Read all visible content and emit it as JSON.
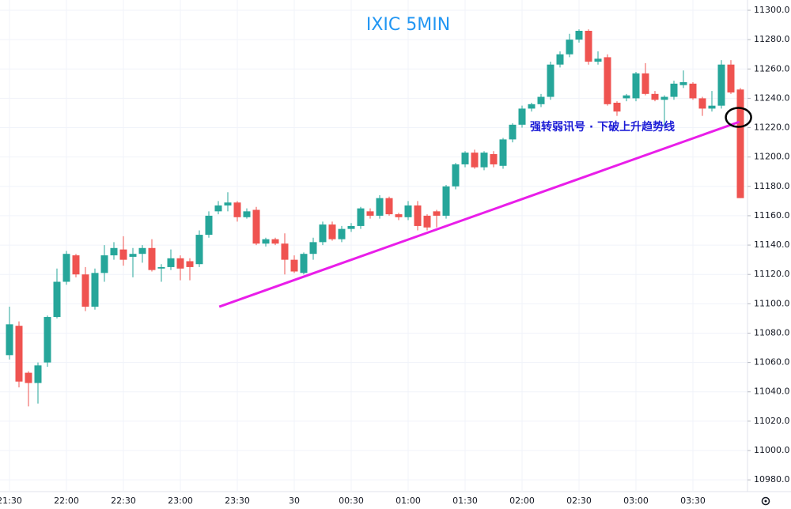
{
  "chart_data": {
    "type": "candlestick",
    "title": "IXIC 5MIN",
    "annotation": "强转弱讯号 · 下破上升趋势线",
    "up_color": "#26a69a",
    "down_color": "#ef5350",
    "grid": true,
    "categories": [
      "21:30",
      null,
      null,
      null,
      null,
      null,
      "22:00",
      null,
      null,
      null,
      null,
      null,
      "22:30",
      null,
      null,
      null,
      null,
      null,
      "23:00",
      null,
      null,
      null,
      null,
      null,
      "23:30",
      null,
      null,
      null,
      null,
      null,
      "30",
      null,
      null,
      null,
      null,
      null,
      "00:30",
      null,
      null,
      null,
      null,
      null,
      "01:00",
      null,
      null,
      null,
      null,
      null,
      "01:30",
      null,
      null,
      null,
      null,
      null,
      "02:00",
      null,
      null,
      null,
      null,
      null,
      "02:30",
      null,
      null,
      null,
      null,
      null,
      "03:00",
      null,
      null,
      null,
      null,
      null,
      "03:30",
      null,
      null,
      null,
      null,
      null
    ],
    "open": [
      11065,
      11085,
      11053,
      11046,
      11060,
      11091,
      11115,
      11133,
      11120,
      11098,
      11121,
      11133,
      11137,
      11132,
      11134,
      11138,
      11124,
      11125,
      11131,
      11129,
      11127,
      11147,
      11163,
      11167,
      11169,
      11159,
      11164,
      11141,
      11144,
      11141,
      11130,
      11121,
      11134,
      11142,
      11154,
      11144,
      11151,
      11153,
      11163,
      11160,
      11172,
      11161,
      11159,
      11167,
      11160,
      11163,
      11160,
      11180,
      11195,
      11203,
      11193,
      11202,
      11194,
      11212,
      11222,
      11233,
      11236,
      11241,
      11263,
      11270,
      11280,
      11286,
      11265,
      11268,
      11237,
      11240,
      11240,
      11257,
      11243,
      11239,
      11241,
      11249,
      11250,
      11240,
      11233,
      11235,
      11263,
      11246
    ],
    "high": [
      11098,
      11088,
      11054,
      11060,
      11092,
      11124,
      11136,
      11134,
      11125,
      11124,
      11140,
      11142,
      11146,
      11138,
      11140,
      11144,
      11127,
      11137,
      11133,
      11131,
      11150,
      11163,
      11170,
      11176,
      11170,
      11165,
      11166,
      11145,
      11145,
      11148,
      11133,
      11135,
      11145,
      11156,
      11156,
      11153,
      11155,
      11166,
      11165,
      11174,
      11173,
      11162,
      11170,
      11170,
      11161,
      11164,
      11181,
      11196,
      11204,
      11205,
      11204,
      11204,
      11213,
      11223,
      11235,
      11237,
      11243,
      11265,
      11272,
      11284,
      11287,
      11287,
      11272,
      11270,
      11238,
      11243,
      11258,
      11264,
      11245,
      11242,
      11252,
      11259,
      11251,
      11241,
      11245,
      11266,
      11266,
      11247
    ],
    "low": [
      11062,
      11043,
      11030,
      11032,
      11057,
      11090,
      11113,
      11118,
      11095,
      11096,
      11115,
      11130,
      11126,
      11118,
      11128,
      11122,
      11115,
      11123,
      11116,
      11116,
      11125,
      11145,
      11161,
      11163,
      11156,
      11158,
      11140,
      11139,
      11140,
      11120,
      11121,
      11120,
      11130,
      11140,
      11143,
      11142,
      11149,
      11151,
      11158,
      11158,
      11160,
      11157,
      11157,
      11150,
      11150,
      11152,
      11158,
      11178,
      11193,
      11192,
      11191,
      11193,
      11192,
      11210,
      11220,
      11231,
      11234,
      11239,
      11261,
      11268,
      11278,
      11263,
      11263,
      11235,
      11228,
      11238,
      11238,
      11242,
      11238,
      11220,
      11239,
      11247,
      11239,
      11228,
      11231,
      11233,
      11243,
      11172
    ],
    "close": [
      11086,
      11047,
      11046,
      11058,
      11091,
      11115,
      11134,
      11120,
      11098,
      11121,
      11133,
      11138,
      11130,
      11134,
      11138,
      11123,
      11125,
      11131,
      11124,
      11125,
      11147,
      11160,
      11167,
      11169,
      11159,
      11163,
      11141,
      11144,
      11141,
      11130,
      11122,
      11134,
      11142,
      11154,
      11144,
      11151,
      11153,
      11165,
      11160,
      11172,
      11161,
      11159,
      11167,
      11153,
      11152,
      11160,
      11180,
      11195,
      11203,
      11193,
      11203,
      11195,
      11212,
      11222,
      11233,
      11236,
      11241,
      11263,
      11270,
      11280,
      11286,
      11265,
      11267,
      11236,
      11231,
      11242,
      11257,
      11243,
      11239,
      11241,
      11250,
      11251,
      11240,
      11233,
      11235,
      11263,
      11244,
      11172
    ],
    "trendline": {
      "color": "#e91ee9",
      "x": [
        22.1,
        76.9
      ],
      "values": [
        11098,
        11224
      ]
    },
    "marker": {
      "x": 76.8,
      "value": 11227
    },
    "ylim": [
      10972,
      11307
    ],
    "yticks": [
      {
        "value": 10980,
        "label": "10980.0"
      },
      {
        "value": 11000,
        "label": "11000.0"
      },
      {
        "value": 11020,
        "label": "11020.0"
      },
      {
        "value": 11040,
        "label": "11040.0"
      },
      {
        "value": 11060,
        "label": "11060.0"
      },
      {
        "value": 11080,
        "label": "11080.0"
      },
      {
        "value": 11100,
        "label": "11100.0"
      },
      {
        "value": 11120,
        "label": "11120.0"
      },
      {
        "value": 11140,
        "label": "11140.0"
      },
      {
        "value": 11160,
        "label": "11160.0"
      },
      {
        "value": 11180,
        "label": "11180.0"
      },
      {
        "value": 11200,
        "label": "11200.0"
      },
      {
        "value": 11220,
        "label": "11220.0"
      },
      {
        "value": 11240,
        "label": "11240.0"
      },
      {
        "value": 11260,
        "label": "11260.0"
      },
      {
        "value": 11280,
        "label": "11280.0"
      },
      {
        "value": 11300,
        "label": "11300.0"
      }
    ]
  }
}
